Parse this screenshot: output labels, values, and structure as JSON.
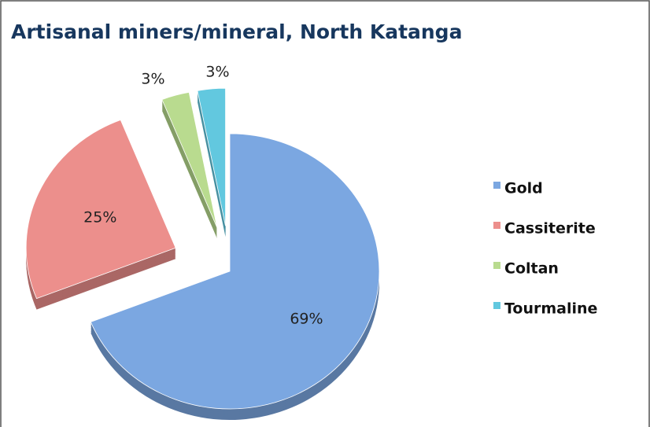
{
  "chart_data": {
    "type": "pie",
    "title": "Artisanal miners/mineral, North Katanga",
    "categories": [
      "Gold",
      "Cassiterite",
      "Coltan",
      "Tourmaline"
    ],
    "values": [
      69,
      25,
      3,
      3
    ],
    "value_labels": [
      "69%",
      "25%",
      "3%",
      "3%"
    ],
    "colors": [
      "#7ba7e1",
      "#ec8f8c",
      "#b9db8f",
      "#62c8df"
    ],
    "legend": "right"
  }
}
